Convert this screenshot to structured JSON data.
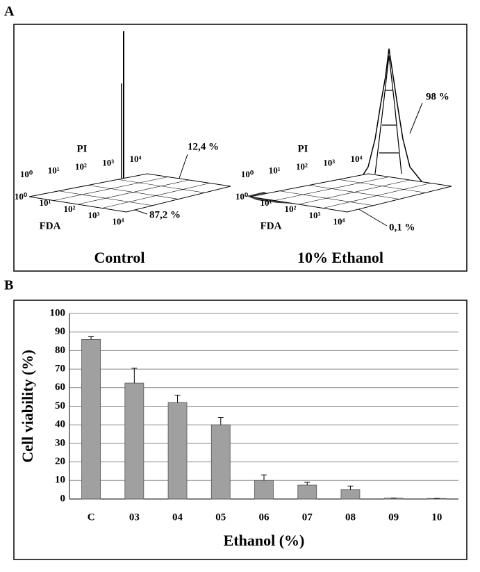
{
  "panel_a": {
    "label": "A",
    "plots": [
      {
        "title": "Control",
        "y_axis_label": "PI",
        "x_axis_label": "FDA",
        "y_ticks": [
          "10⁰",
          "10¹",
          "10²",
          "10³",
          "10⁴"
        ],
        "x_ticks": [
          "10⁰",
          "10¹",
          "10²",
          "10³",
          "10⁴"
        ],
        "annotations": [
          "12,4 %",
          "87,2 %"
        ]
      },
      {
        "title": "10% Ethanol",
        "y_axis_label": "PI",
        "x_axis_label": "FDA",
        "y_ticks": [
          "10⁰",
          "10¹",
          "10²",
          "10³",
          "10⁴"
        ],
        "x_ticks": [
          "10⁰",
          "10¹",
          "10²",
          "10³",
          "10⁴"
        ],
        "annotations": [
          "98 %",
          "0,1 %"
        ]
      }
    ]
  },
  "panel_b_label": "B",
  "chart_data": {
    "type": "bar",
    "x_label": "Ethanol (%)",
    "y_label": "Cell viability (%)",
    "categories": [
      "C",
      "03",
      "04",
      "05",
      "06",
      "07",
      "08",
      "09",
      "10"
    ],
    "values": [
      86,
      62.5,
      52,
      40,
      10,
      7.5,
      5,
      0.5,
      0.3
    ],
    "errors": [
      1.5,
      8,
      4,
      4,
      3,
      1.5,
      2,
      0,
      0
    ],
    "color": "#a0a0a0",
    "ylim": [
      0,
      100
    ],
    "yticks": [
      0,
      10,
      20,
      30,
      40,
      50,
      60,
      70,
      80,
      90,
      100
    ],
    "grid": true
  }
}
